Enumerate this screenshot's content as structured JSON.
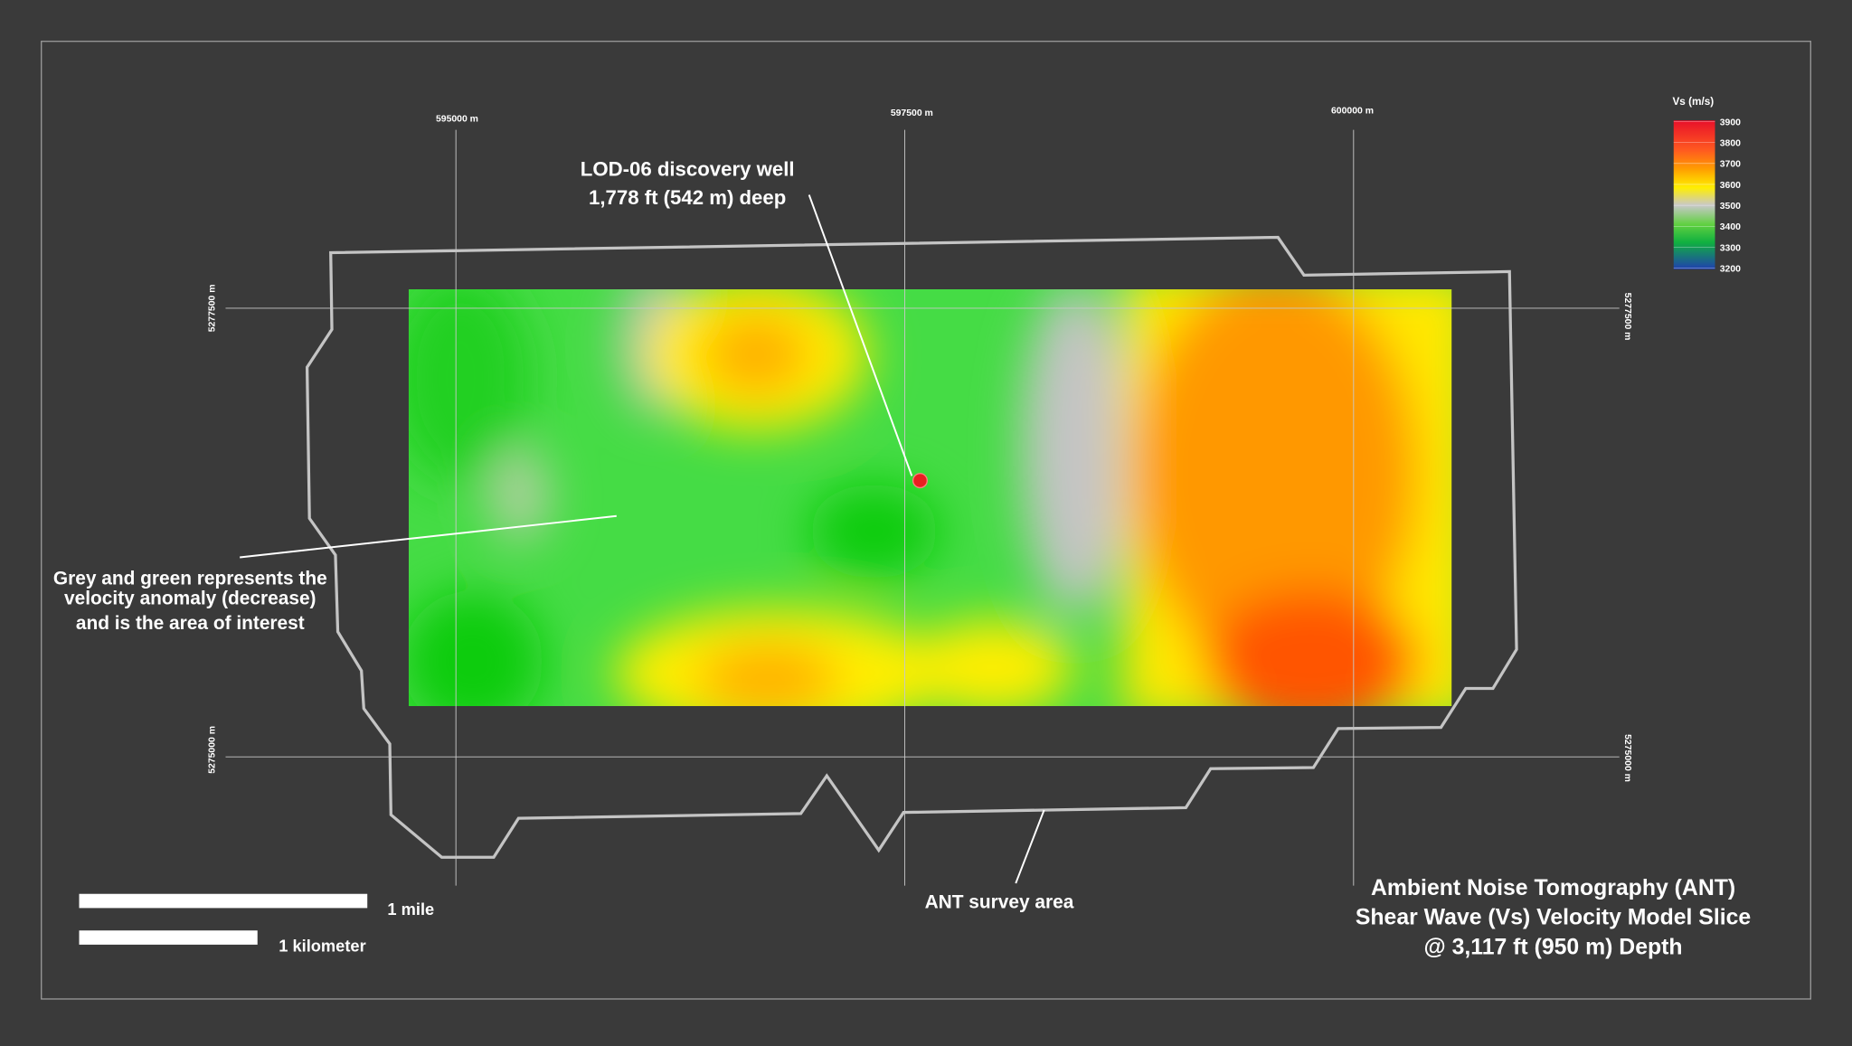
{
  "map": {
    "title": [
      "Ambient Noise Tomography (ANT)",
      "Shear Wave (Vs) Velocity Model Slice",
      "@  3,117 ft (950 m) Depth"
    ],
    "well_label": [
      "LOD-06 discovery well",
      "1,778 ft (542 m) deep"
    ],
    "annotation": [
      "Grey and green represents the",
      "velocity anomaly (decrease)",
      "and is the area of interest"
    ],
    "survey_label": "ANT survey area",
    "easting_labels": [
      "595000 m",
      "597500 m",
      "600000 m"
    ],
    "northing_labels": [
      "5277500 m",
      "5275000 m"
    ],
    "legend": {
      "title": "Vs (m/s)",
      "ticks": [
        3900,
        3800,
        3700,
        3600,
        3500,
        3400,
        3300,
        3200
      ]
    },
    "scale_bars": [
      "1 mile",
      "1 kilometer"
    ]
  }
}
